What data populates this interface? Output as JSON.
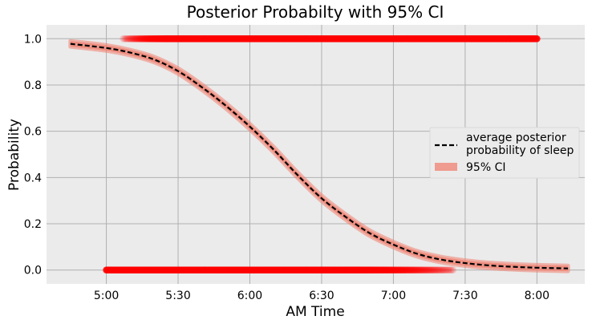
{
  "chart_data": {
    "type": "line",
    "title": "Posterior Probabilty with 95% CI",
    "xlabel": "AM Time",
    "ylabel": "Probability",
    "x_ticks": [
      "5:00",
      "5:30",
      "6:00",
      "6:30",
      "7:00",
      "7:30",
      "8:00"
    ],
    "y_ticks": [
      "0.0",
      "0.2",
      "0.4",
      "0.6",
      "0.8",
      "1.0"
    ],
    "xlim": [
      "4:35",
      "8:20"
    ],
    "ylim": [
      -0.06,
      1.06
    ],
    "grid": true,
    "background": "#ebebeb",
    "legend": {
      "location": "center-right",
      "entries": [
        "average posterior\nprobability of sleep",
        "95% CI"
      ]
    },
    "series": [
      {
        "name": "average posterior\nprobability of sleep",
        "kind": "line",
        "style": "dashed",
        "color": "#000000",
        "x": [
          "4:45",
          "5:00",
          "5:10",
          "5:20",
          "5:30",
          "5:40",
          "5:50",
          "6:00",
          "6:10",
          "6:20",
          "6:30",
          "6:40",
          "6:50",
          "7:00",
          "7:10",
          "7:20",
          "7:30",
          "7:40",
          "7:50",
          "8:00",
          "8:13"
        ],
        "y": [
          0.978,
          0.96,
          0.94,
          0.91,
          0.86,
          0.79,
          0.71,
          0.62,
          0.52,
          0.41,
          0.31,
          0.23,
          0.16,
          0.11,
          0.07,
          0.045,
          0.03,
          0.02,
          0.014,
          0.01,
          0.007
        ]
      },
      {
        "name": "95% CI",
        "kind": "band",
        "color": "#f08070",
        "half_width": 0.012
      },
      {
        "name": "observations asleep",
        "kind": "scatter",
        "color": "#ff0000",
        "y": 1,
        "x_range": [
          "5:07",
          "8:00"
        ],
        "fade_end": "5:25"
      },
      {
        "name": "observations awake",
        "kind": "scatter",
        "color": "#ff0000",
        "y": 0,
        "x_range": [
          "5:00",
          "7:25"
        ],
        "fade_start": "6:45"
      }
    ]
  }
}
